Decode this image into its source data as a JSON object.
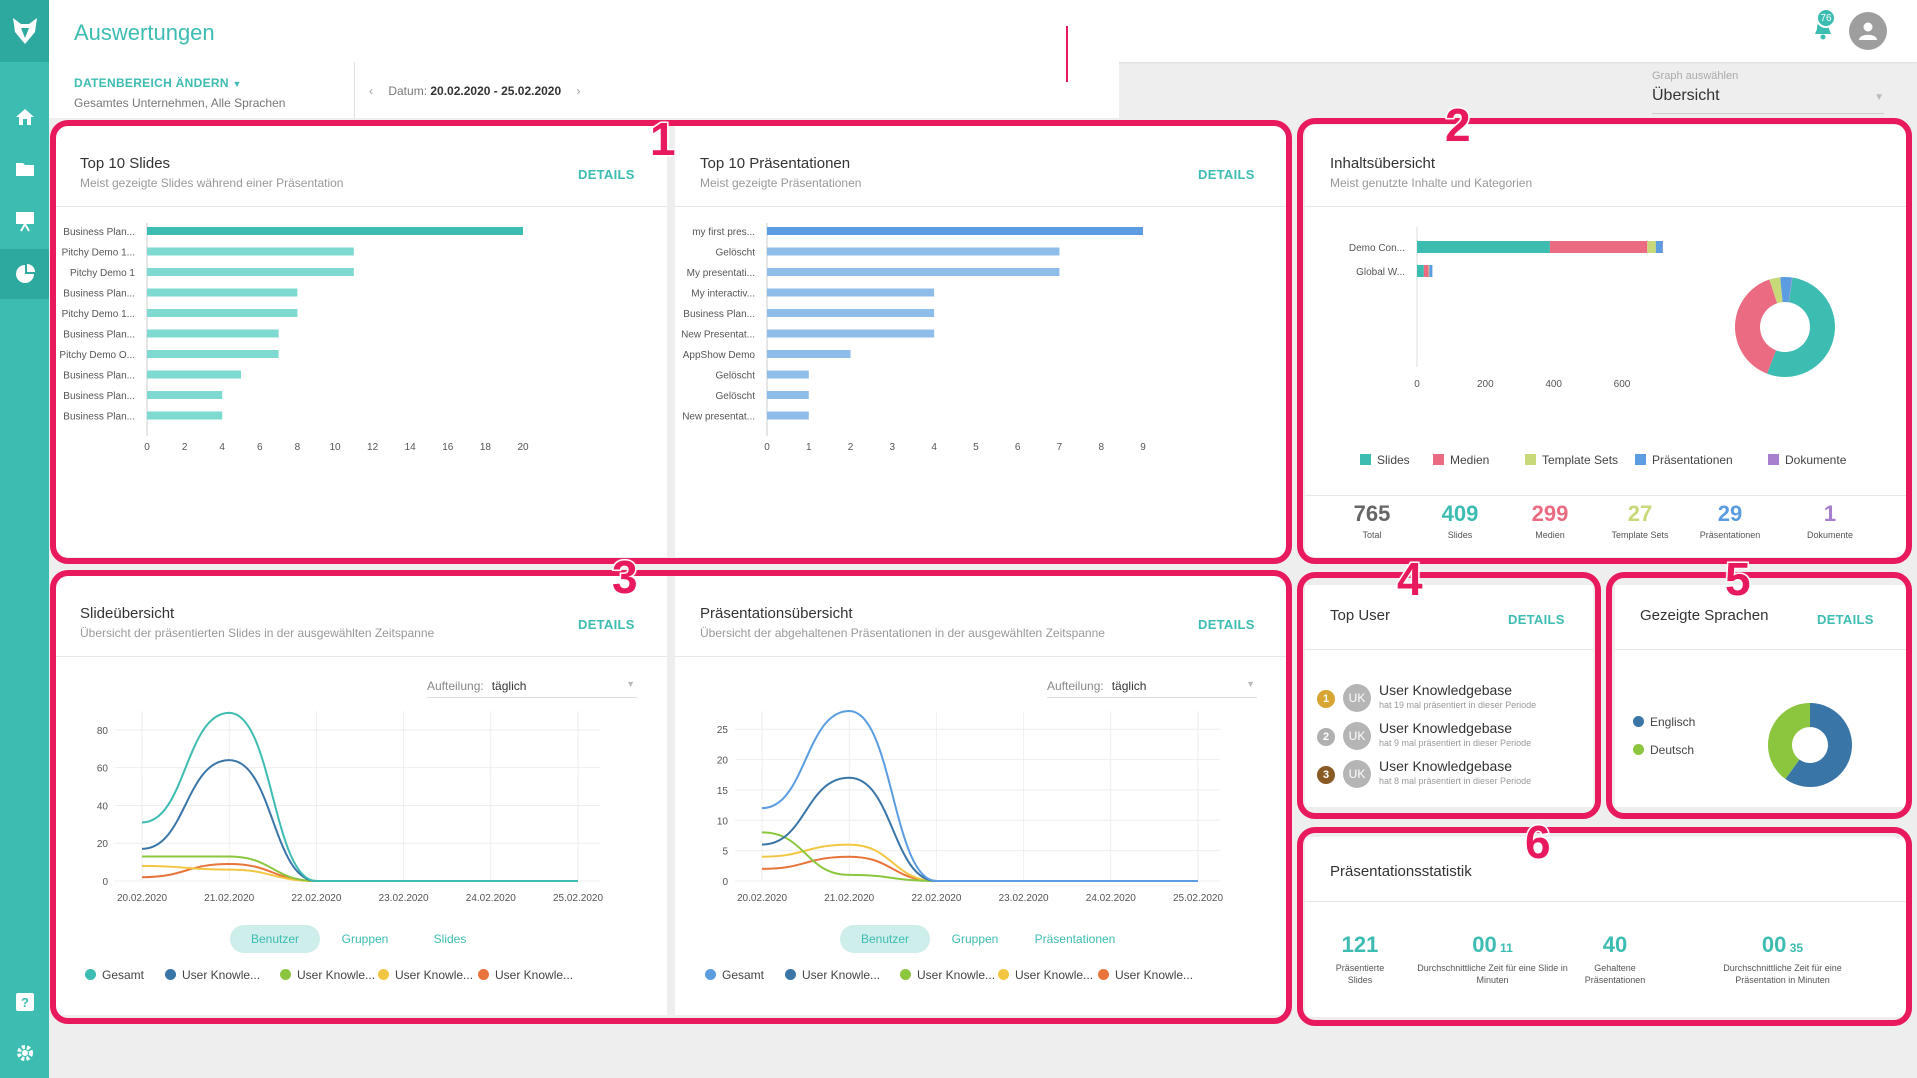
{
  "app": {
    "title": "Auswertungen",
    "notification_count": "76"
  },
  "filter": {
    "label": "DATENBEREICH ÄNDERN",
    "sub": "Gesamtes Unternehmen,  Alle Sprachen",
    "date_label": "Datum:",
    "date_value": "20.02.2020 - 25.02.2020"
  },
  "graph_select": {
    "label": "Graph auswählen",
    "value": "Übersicht"
  },
  "markers": [
    "1",
    "2",
    "3",
    "4",
    "5",
    "6"
  ],
  "details_label": "DETAILS",
  "top_slides": {
    "title": "Top 10 Slides",
    "subtitle": "Meist gezeigte Slides während einer Präsentation",
    "chart_data": {
      "type": "bar",
      "orientation": "horizontal",
      "categories": [
        "Business Plan...",
        "Pitchy Demo 1...",
        "Pitchy Demo 1",
        "Business Plan...",
        "Pitchy Demo 1...",
        "Business Plan...",
        "Pitchy Demo O...",
        "Business Plan...",
        "Business Plan...",
        "Business Plan..."
      ],
      "values": [
        20,
        11,
        11,
        8,
        8,
        7,
        7,
        5,
        4,
        4
      ],
      "xlim": [
        0,
        20
      ],
      "xticks": [
        "0",
        "2",
        "4",
        "6",
        "8",
        "10",
        "12",
        "14",
        "16",
        "18",
        "20"
      ],
      "colors": {
        "first": "#3dbcb2",
        "rest": "#7ed9d1"
      }
    }
  },
  "top_presentations": {
    "title": "Top 10 Präsentationen",
    "subtitle": "Meist gezeigte Präsentationen",
    "chart_data": {
      "type": "bar",
      "orientation": "horizontal",
      "categories": [
        "my first pres...",
        "Gelöscht",
        "My presentati...",
        "My interactiv...",
        "Business Plan...",
        "New Presentat...",
        "AppShow Demo",
        "Gelöscht",
        "Gelöscht",
        "New presentat..."
      ],
      "values": [
        9,
        7,
        7,
        4,
        4,
        4,
        2,
        1,
        1,
        1
      ],
      "xlim": [
        0,
        9
      ],
      "xticks": [
        "0",
        "1",
        "2",
        "3",
        "4",
        "5",
        "6",
        "7",
        "8",
        "9"
      ],
      "colors": {
        "first": "#5b9de0",
        "rest": "#8fbdea"
      }
    }
  },
  "content_overview": {
    "title": "Inhaltsübersicht",
    "subtitle": "Meist genutzte Inhalte und Kategorien",
    "chart_data": {
      "type": "bar",
      "orientation": "horizontal",
      "stacked": true,
      "categories": [
        "Demo Con...",
        "Global W..."
      ],
      "series": [
        {
          "name": "Slides",
          "color": "#3dbcb2",
          "values": [
            389,
            20
          ]
        },
        {
          "name": "Medien",
          "color": "#ea6b82",
          "values": [
            285,
            14
          ]
        },
        {
          "name": "Template Sets",
          "color": "#c8d97a",
          "values": [
            25,
            2
          ]
        },
        {
          "name": "Präsentationen",
          "color": "#5b9de0",
          "values": [
            20,
            9
          ]
        },
        {
          "name": "Dokumente",
          "color": "#a67fcf",
          "values": [
            1,
            0
          ]
        }
      ],
      "xlim": [
        0,
        720
      ],
      "xticks": [
        "0",
        "200",
        "400",
        "600"
      ],
      "donut": [
        409,
        299,
        27,
        29,
        1
      ]
    },
    "stats": [
      {
        "value": "765",
        "label": "Total",
        "color": "#666666"
      },
      {
        "value": "409",
        "label": "Slides",
        "color": "#3dbcb2"
      },
      {
        "value": "299",
        "label": "Medien",
        "color": "#ea6b82"
      },
      {
        "value": "27",
        "label": "Template Sets",
        "color": "#c8d97a"
      },
      {
        "value": "29",
        "label": "Präsentationen",
        "color": "#5b9de0"
      },
      {
        "value": "1",
        "label": "Dokumente",
        "color": "#a67fcf"
      }
    ]
  },
  "slide_overview": {
    "title": "Slideübersicht",
    "subtitle": "Übersicht der präsentierten Slides in der ausgewählten Zeitspanne",
    "split_label": "Aufteilung:",
    "split_value": "täglich",
    "tabs": [
      "Benutzer",
      "Gruppen",
      "Slides"
    ],
    "chart_data": {
      "type": "line",
      "x": [
        "20.02.2020",
        "21.02.2020",
        "22.02.2020",
        "23.02.2020",
        "24.02.2020",
        "25.02.2020"
      ],
      "ylim": [
        0,
        90
      ],
      "yticks": [
        "0",
        "20",
        "40",
        "60",
        "80"
      ],
      "series": [
        {
          "name": "Gesamt",
          "color": "#3dbcb2",
          "values": [
            31,
            89,
            0,
            0,
            0,
            0
          ]
        },
        {
          "name": "User Knowle...",
          "color": "#3a75a8",
          "values": [
            17,
            64,
            0,
            0,
            0,
            0
          ]
        },
        {
          "name": "User Knowle...",
          "color": "#8cc63e",
          "values": [
            13,
            13,
            0,
            0,
            0,
            0
          ]
        },
        {
          "name": "User Knowle...",
          "color": "#f2c642",
          "values": [
            8,
            6,
            0,
            0,
            0,
            0
          ]
        },
        {
          "name": "User Knowle...",
          "color": "#e8743b",
          "values": [
            2,
            9,
            0,
            0,
            0,
            0
          ]
        }
      ]
    }
  },
  "presentation_overview": {
    "title": "Präsentationsübersicht",
    "subtitle": "Übersicht der abgehaltenen Präsentationen in der ausgewählten Zeitspanne",
    "split_label": "Aufteilung:",
    "split_value": "täglich",
    "tabs": [
      "Benutzer",
      "Gruppen",
      "Präsentationen"
    ],
    "chart_data": {
      "type": "line",
      "x": [
        "20.02.2020",
        "21.02.2020",
        "22.02.2020",
        "23.02.2020",
        "24.02.2020",
        "25.02.2020"
      ],
      "ylim": [
        0,
        28
      ],
      "yticks": [
        "0",
        "5",
        "10",
        "15",
        "20",
        "25"
      ],
      "series": [
        {
          "name": "Gesamt",
          "color": "#5b9de0",
          "values": [
            12,
            28,
            0,
            0,
            0,
            0
          ]
        },
        {
          "name": "User Knowle...",
          "color": "#3a75a8",
          "values": [
            6,
            17,
            0,
            0,
            0,
            0
          ]
        },
        {
          "name": "User Knowle...",
          "color": "#8cc63e",
          "values": [
            8,
            1,
            0,
            0,
            0,
            0
          ]
        },
        {
          "name": "User Knowle...",
          "color": "#f2c642",
          "values": [
            4,
            6,
            0,
            0,
            0,
            0
          ]
        },
        {
          "name": "User Knowle...",
          "color": "#e8743b",
          "values": [
            2,
            4,
            0,
            0,
            0,
            0
          ]
        }
      ]
    }
  },
  "top_user": {
    "title": "Top User",
    "users": [
      {
        "rank": "1",
        "initials": "UK",
        "name": "User Knowledgebase",
        "note": "hat 19 mal präsentiert in dieser Periode",
        "rank_color": "#d8a533"
      },
      {
        "rank": "2",
        "initials": "UK",
        "name": "User Knowledgebase",
        "note": "hat 9 mal präsentiert in dieser Periode",
        "rank_color": "#b0b0b0"
      },
      {
        "rank": "3",
        "initials": "UK",
        "name": "User Knowledgebase",
        "note": "hat 8 mal präsentiert in dieser Periode",
        "rank_color": "#8a5a25"
      }
    ]
  },
  "languages": {
    "title": "Gezeigte Sprachen",
    "chart_data": {
      "type": "pie",
      "categories": [
        "Englisch",
        "Deutsch"
      ],
      "values": [
        60,
        40
      ],
      "colors": [
        "#3a75a8",
        "#8cc63e"
      ]
    }
  },
  "presentation_stats": {
    "title": "Präsentationsstatistik",
    "stats": [
      {
        "value": "121",
        "unit": "",
        "label": "Präsentierte Slides"
      },
      {
        "value": "00",
        "unit": "11",
        "label": "Durchschnittliche Zeit für eine Slide in Minuten"
      },
      {
        "value": "40",
        "unit": "",
        "label": "Gehaltene Präsentationen"
      },
      {
        "value": "00",
        "unit": "35",
        "label": "Durchschnittliche Zeit für eine Präsentation in Minuten"
      }
    ]
  }
}
